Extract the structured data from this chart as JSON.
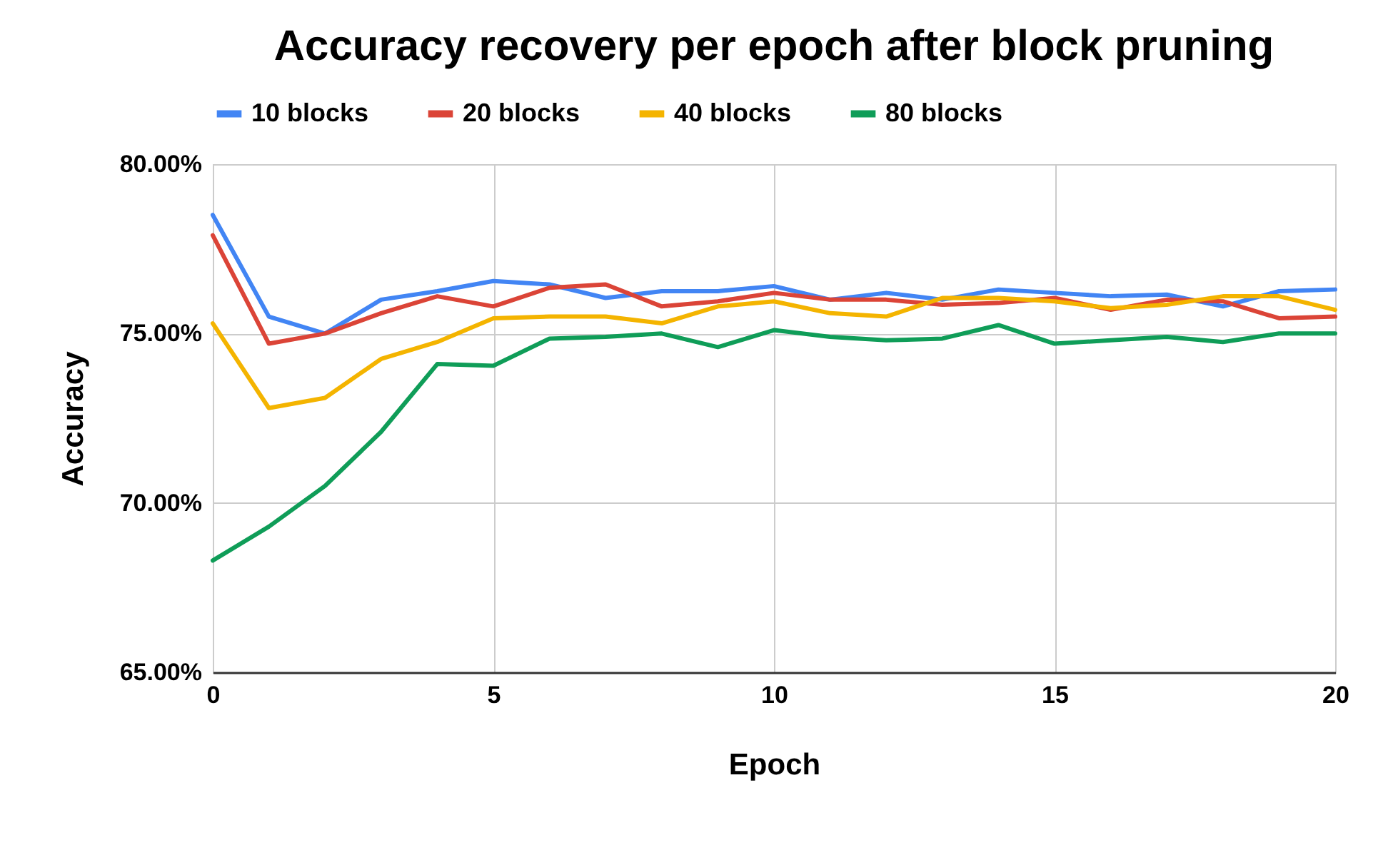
{
  "chart_data": {
    "type": "line",
    "title": "Accuracy recovery per epoch after block pruning",
    "xlabel": "Epoch",
    "ylabel": "Accuracy",
    "x": [
      0,
      1,
      2,
      3,
      4,
      5,
      6,
      7,
      8,
      9,
      10,
      11,
      12,
      13,
      14,
      15,
      16,
      17,
      18,
      19,
      20
    ],
    "series": [
      {
        "name": "10 blocks",
        "color": "#4285f4",
        "values": [
          78.5,
          75.5,
          75.0,
          76.0,
          76.25,
          76.55,
          76.45,
          76.05,
          76.25,
          76.25,
          76.4,
          76.0,
          76.2,
          76.0,
          76.3,
          76.2,
          76.1,
          76.15,
          75.8,
          76.25,
          76.3
        ]
      },
      {
        "name": "20 blocks",
        "color": "#db4437",
        "values": [
          77.9,
          74.7,
          75.0,
          75.6,
          76.1,
          75.8,
          76.35,
          76.45,
          75.8,
          75.95,
          76.2,
          76.0,
          76.0,
          75.85,
          75.9,
          76.05,
          75.7,
          76.0,
          75.95,
          75.45,
          75.5
        ]
      },
      {
        "name": "40 blocks",
        "color": "#f4b400",
        "values": [
          75.3,
          72.8,
          73.1,
          74.25,
          74.75,
          75.45,
          75.5,
          75.5,
          75.3,
          75.8,
          75.95,
          75.6,
          75.5,
          76.05,
          76.05,
          75.95,
          75.75,
          75.85,
          76.1,
          76.1,
          75.7
        ]
      },
      {
        "name": "80 blocks",
        "color": "#0f9d58",
        "values": [
          68.3,
          69.3,
          70.5,
          72.1,
          74.1,
          74.05,
          74.85,
          74.9,
          75.0,
          74.6,
          75.1,
          74.9,
          74.8,
          74.85,
          75.25,
          74.7,
          74.8,
          74.9,
          74.75,
          75.0,
          75.0
        ]
      }
    ],
    "xlim": [
      0,
      20
    ],
    "xticks": [
      0,
      5,
      10,
      15,
      20
    ],
    "ylim": [
      65,
      80
    ],
    "yticks": [
      {
        "value": 65,
        "label": "65.00%"
      },
      {
        "value": 70,
        "label": "70.00%"
      },
      {
        "value": 75,
        "label": "75.00%"
      },
      {
        "value": 80,
        "label": "80.00%"
      }
    ],
    "grid": true,
    "legend": "top",
    "marker": "none",
    "line_style": "solid"
  }
}
